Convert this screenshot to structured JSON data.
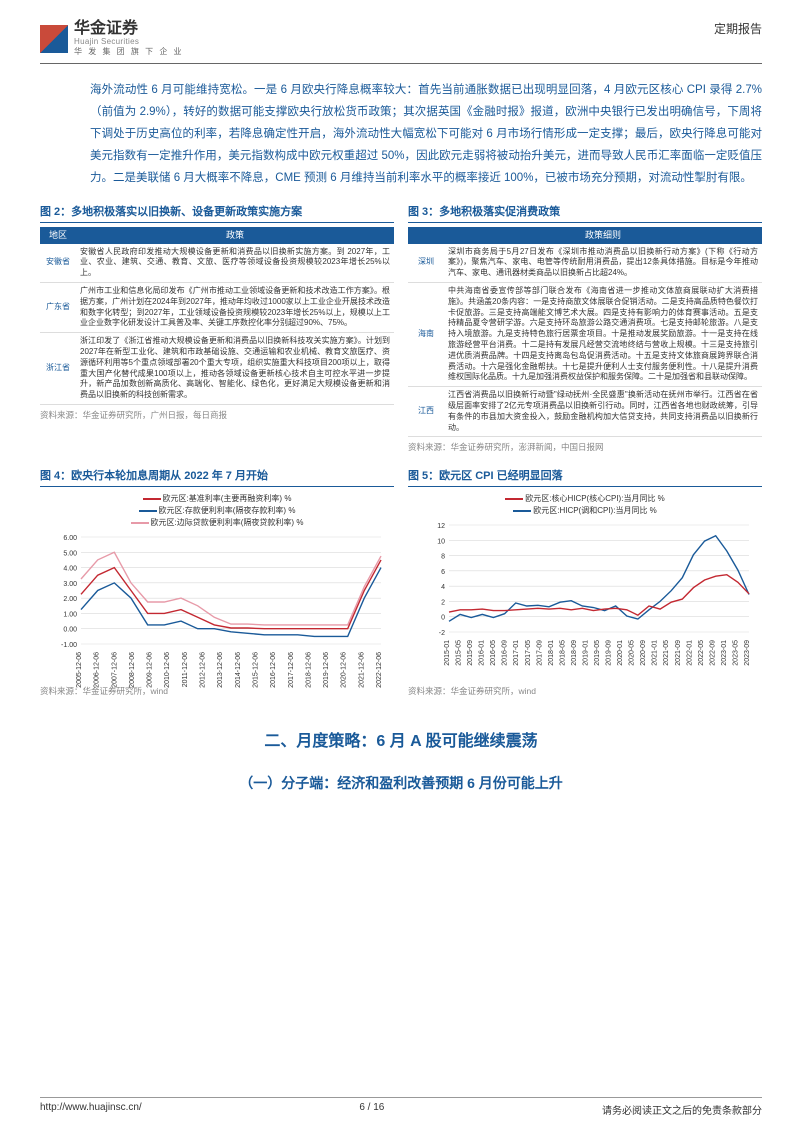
{
  "header": {
    "brand_cn": "华金证券",
    "brand_en": "Huajin Securities",
    "brand_sub": "华 发 集 团 旗 下 企 业",
    "report_type": "定期报告"
  },
  "body_para": "海外流动性 6 月可能维持宽松。一是 6 月欧央行降息概率较大：首先当前通胀数据已出现明显回落，4 月欧元区核心 CPI 录得 2.7%（前值为 2.9%），转好的数据可能支撑欧央行放松货币政策；其次据英国《金融时报》报道，欧洲中央银行已发出明确信号，下周将下调处于历史高位的利率，若降息确定性开启，海外流动性大幅宽松下可能对 6 月市场行情形成一定支撑；最后，欧央行降息可能对美元指数有一定推升作用，美元指数构成中欧元权重超过 50%，因此欧元走弱将被动抬升美元，进而导致人民币汇率面临一定贬值压力。二是美联储 6 月大概率不降息，CME 预测 6 月维持当前利率水平的概率接近 100%，已被市场充分预期，对流动性掣肘有限。",
  "fig2": {
    "title": "图 2：多地积极落实以旧换新、设备更新政策实施方案",
    "col1": "地区",
    "col2": "政策",
    "rows": [
      {
        "region": "安徽省",
        "desc": "安徽省人民政府印发推动大规模设备更新和消费品以旧换新实施方案。到 2027年，工业、农业、建筑、交通、教育、文旅、医疗等领域设备投资规模较2023年增长25%以上。"
      },
      {
        "region": "广东省",
        "desc": "广州市工业和信息化局印发布《广州市推动工业领域设备更新和技术改造工作方案》。根据方案，广州计划在2024年到2027年，推动年均收过1000家以上工业企业开展技术改造和数字化转型；到2027年，工业领域设备投资规模较2023年增长25%以上，规模以上工业企业数字化研发设计工具普及率、关键工序数控化率分别超过90%、75%。"
      },
      {
        "region": "浙江省",
        "desc": "浙江印发了《浙江省推动大规模设备更新和消费品以旧换新科技攻关实施方案》。计划到2027年在新型工业化、建筑和市政基础设施、交通运输和农业机械、教育文旅医疗、资源循环利用等5个重点领域部署20个重大专项，组织实施重大科技项目200项以上，取得重大国产化替代成果100项以上，推动各领域设备更新核心技术自主可控水平进一步提升，新产品加数创新高质化、高端化、智能化、绿色化，更好满足大规模设备更新和消费品以旧换新的科技创新需求。"
      }
    ],
    "source": "资料来源：华金证券研究所，广州日报，每日商报"
  },
  "fig3": {
    "title": "图 3：多地积极落实促消费政策",
    "col2": "政策细则",
    "rows": [
      {
        "region": "深圳",
        "desc": "深圳市商务局于5月27日发布《深圳市推动消费品以旧换新行动方案》(下称《行动方案》)，聚焦汽车、家电、电管等传统耐用消费品，提出12条具体措施。目标是今年推动汽车、家电、通讯器材类商品以旧换新占比超24%。"
      },
      {
        "region": "海南",
        "desc": "中共海南省委宣传部等部门联合发布《海南省进一步推动文体旅商展联动扩大消费措施》。共涵盖20条内容：一是支持商旅文体展联合促销活动。二是支持高品质特色餐饮打卡促旅游。三是支持高端能文博艺术大展。四是支持有影响力的体育赛事活动。五是支持精品夏令营研学游。六是支持环岛旅游公路交通消费项。七是支持邮轮旅游。八是支持入境旅游。九是支持特色旅行居票金项目。十是推动发展奖励旅游。十一是支持在线旅游经营平台消费。十二是持有发展凡经营交流地终结与营收上规模。十三是支持旅引进优质消费品牌。十四是支持离岛包岛促消费活动。十五是支持文体旅商展跨界联合消费活动。十六是强化金融帮扶。十七是提升便利人士支付服务便利性。十八是提升消费维权国际化品质。十九是加强消费权益保护和服务保障。二十是加强省和县联动保障。"
      },
      {
        "region": "江西",
        "desc": "江西省消费品以旧换新行动暨\"绿动抚州·全民盛惠\"换新活动在抚州市举行。江西省在省级层面率安排了2亿元专项消费品以旧换新引行动。同时，江西省各地也财政统筹，引导有条件的市县加大资金投入，鼓励金融机构加大信贷支持，共同支持消费品以旧换新行动。"
      }
    ],
    "source": "资料来源：华金证券研究所，澎湃新闻，中国日报网"
  },
  "fig4": {
    "title": "图 4：欧央行本轮加息周期从 2022 年 7 月开始",
    "legend": [
      {
        "label": "欧元区:基准利率(主要再融资利率) %",
        "color": "#c32831"
      },
      {
        "label": "欧元区:存款便利利率(隔夜存款利率) %",
        "color": "#1a5a99"
      },
      {
        "label": "欧元区:边际贷款便利利率(隔夜贷款利率) %",
        "color": "#e79aa8"
      }
    ],
    "ylim": [
      -1,
      6
    ],
    "ytick_step": 1,
    "yticks": [
      "6.00",
      "5.00",
      "4.00",
      "3.00",
      "2.00",
      "1.00",
      "0.00",
      "-1.00"
    ],
    "xlabels": [
      "2005-12-06",
      "2006-12-06",
      "2007-12-06",
      "2008-12-06",
      "2009-12-06",
      "2010-12-06",
      "2011-12-06",
      "2012-12-06",
      "2013-12-06",
      "2014-12-06",
      "2015-12-06",
      "2016-12-06",
      "2017-12-06",
      "2018-12-06",
      "2019-12-06",
      "2020-12-06",
      "2021-12-06",
      "2022-12-06"
    ],
    "grid_color": "#d9d9d9",
    "series": {
      "refi": [
        2.25,
        3.5,
        4.0,
        2.5,
        1.0,
        1.0,
        1.25,
        0.75,
        0.25,
        0.05,
        0.05,
        0.0,
        0.0,
        0.0,
        0.0,
        0.0,
        0.0,
        2.5,
        4.5
      ],
      "depo": [
        1.25,
        2.5,
        3.0,
        2.0,
        0.25,
        0.25,
        0.5,
        0.0,
        0.0,
        -0.2,
        -0.3,
        -0.4,
        -0.4,
        -0.4,
        -0.5,
        -0.5,
        -0.5,
        2.0,
        4.0
      ],
      "lend": [
        3.25,
        4.5,
        5.0,
        3.0,
        1.75,
        1.75,
        2.0,
        1.5,
        0.75,
        0.3,
        0.3,
        0.25,
        0.25,
        0.25,
        0.25,
        0.25,
        0.25,
        2.75,
        4.75
      ]
    },
    "source": "资料来源：华金证券研究所，wind"
  },
  "fig5": {
    "title": "图 5：欧元区 CPI 已经明显回落",
    "legend": [
      {
        "label": "欧元区:核心HICP(核心CPI):当月同比 %",
        "color": "#c32831"
      },
      {
        "label": "欧元区:HICP(调和CPI):当月同比 %",
        "color": "#1a5a99"
      }
    ],
    "ylim": [
      -2,
      12
    ],
    "ytick_step": 2,
    "yticks": [
      "12",
      "10",
      "8",
      "6",
      "4",
      "2",
      "0",
      "-2"
    ],
    "xlabels": [
      "2015-01",
      "2015-05",
      "2015-09",
      "2016-01",
      "2016-05",
      "2016-09",
      "2017-01",
      "2017-05",
      "2017-09",
      "2018-01",
      "2018-05",
      "2018-09",
      "2019-01",
      "2019-05",
      "2019-09",
      "2020-01",
      "2020-05",
      "2020-09",
      "2021-01",
      "2021-05",
      "2021-09",
      "2022-01",
      "2022-05",
      "2022-09",
      "2023-01",
      "2023-05",
      "2023-09"
    ],
    "grid_color": "#d9d9d9",
    "series": {
      "core": [
        0.6,
        0.9,
        0.9,
        1.0,
        0.8,
        0.8,
        0.9,
        1.0,
        1.1,
        1.0,
        1.1,
        0.9,
        1.1,
        0.8,
        1.0,
        1.1,
        0.9,
        0.2,
        1.4,
        1.0,
        1.9,
        2.3,
        3.8,
        4.8,
        5.3,
        5.5,
        4.5,
        3.0
      ],
      "hicp": [
        -0.6,
        0.3,
        -0.1,
        0.3,
        -0.1,
        0.4,
        1.8,
        1.4,
        1.5,
        1.3,
        1.9,
        2.1,
        1.4,
        1.2,
        0.8,
        1.4,
        0.1,
        -0.3,
        0.9,
        2.0,
        3.4,
        5.1,
        8.1,
        9.9,
        10.6,
        8.6,
        6.1,
        2.9
      ]
    },
    "source": "资料来源：华金证券研究所，wind"
  },
  "section_h1": "二、月度策略：6 月 A 股可能继续震荡",
  "section_h2": "（一）分子端：经济和盈利改善预期 6 月份可能上升",
  "footer": {
    "url": "http://www.huajinsc.cn/",
    "page": "6 / 16",
    "disclaimer": "请务必阅读正文之后的免责条款部分"
  }
}
